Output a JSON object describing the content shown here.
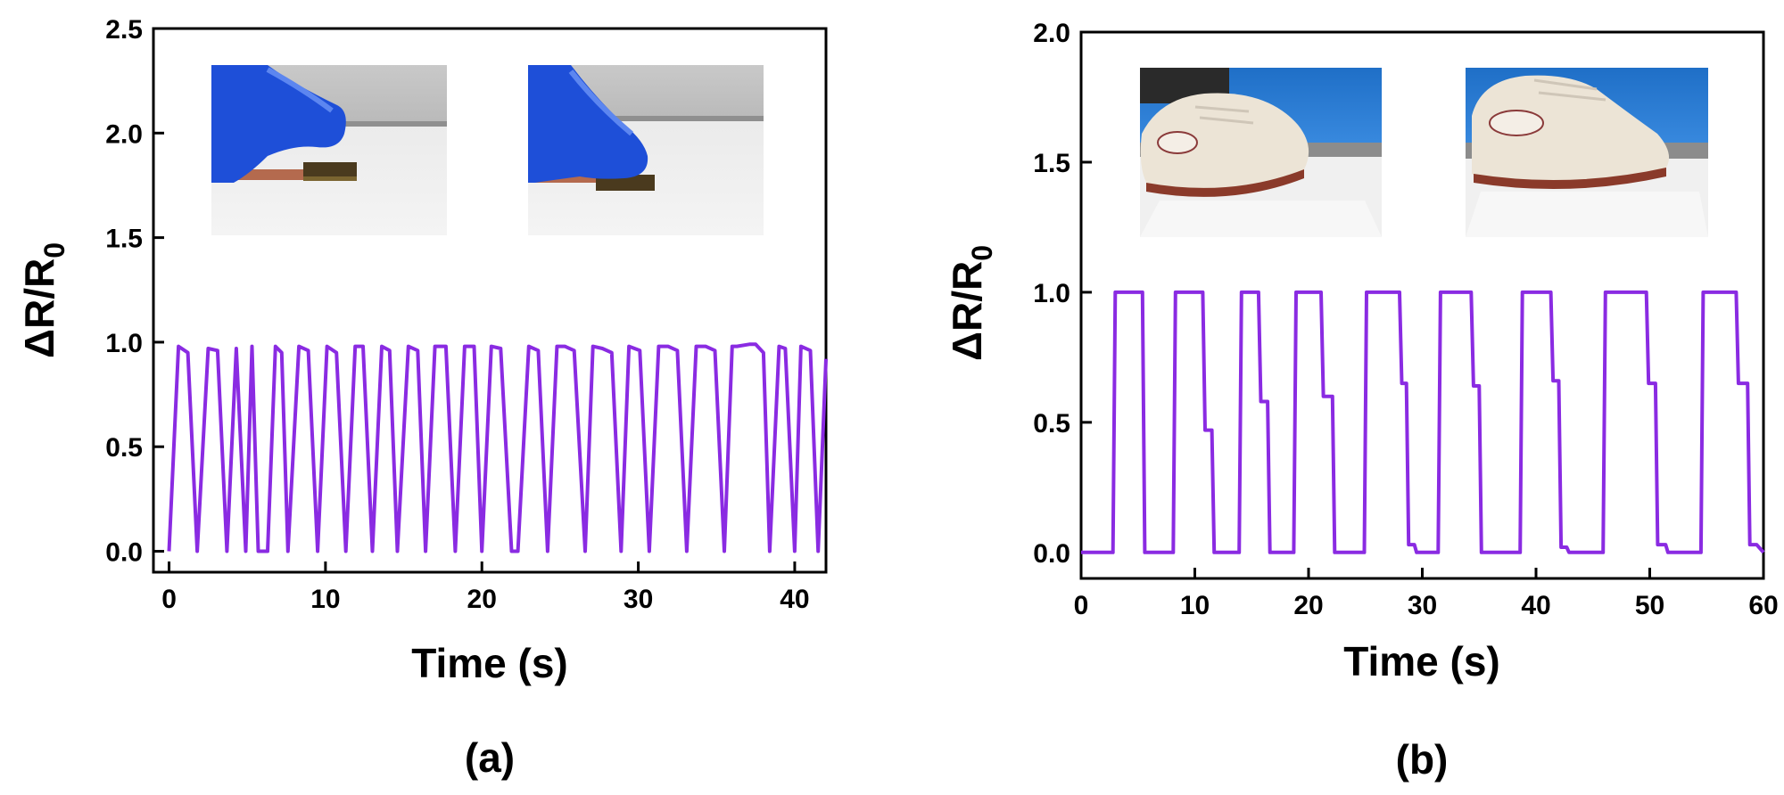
{
  "chart_data": [
    {
      "type": "line",
      "panel_label": "(a)",
      "xlabel": "Time (s)",
      "ylabel": "ΔR/R0",
      "xlim": [
        -1,
        42
      ],
      "ylim": [
        -0.1,
        2.5
      ],
      "x_ticks": [
        0,
        10,
        20,
        30,
        40
      ],
      "y_ticks": [
        0.0,
        0.5,
        1.0,
        1.5,
        2.0,
        2.5
      ],
      "x_tick_labels": [
        "0",
        "10",
        "20",
        "30",
        "40"
      ],
      "y_tick_labels": [
        "0.0",
        "0.5",
        "1.0",
        "1.5",
        "2.0",
        "2.5"
      ],
      "line_color": "#8a2be2",
      "inset_photos": [
        "finger-press-before",
        "finger-press-after"
      ],
      "series": [
        {
          "x": [
            0,
            0.6,
            1.2,
            1.8,
            2.5,
            3.1,
            3.7,
            4.3,
            4.9,
            5.3,
            5.7,
            6.3,
            6.8,
            7.2,
            7.6,
            8.3,
            8.9,
            9.5,
            10.1,
            10.7,
            11.3,
            11.9,
            12.4,
            13.0,
            13.6,
            14.1,
            14.6,
            15.3,
            15.9,
            16.4,
            17.0,
            17.7,
            18.3,
            18.9,
            19.5,
            20.0,
            20.6,
            21.2,
            21.9,
            22.3,
            23.0,
            23.6,
            24.2,
            24.8,
            25.3,
            25.9,
            26.6,
            27.1,
            27.7,
            28.3,
            28.9,
            29.4,
            30.1,
            30.7,
            31.3,
            31.9,
            32.5,
            33.1,
            33.7,
            34.3,
            34.9,
            35.5,
            36.0,
            36.3,
            37.1,
            37.5,
            38.0,
            38.4,
            39.0,
            39.4,
            40.0,
            40.4,
            41.0,
            41.5,
            42.0
          ],
          "y": [
            0,
            0.98,
            0.95,
            0,
            0.97,
            0.96,
            0,
            0.97,
            0,
            0.98,
            0,
            0,
            0.98,
            0.95,
            0,
            0.98,
            0.96,
            0,
            0.98,
            0.95,
            0,
            0.98,
            0.98,
            0,
            0.98,
            0.96,
            0,
            0.98,
            0.96,
            0,
            0.98,
            0.98,
            0,
            0.98,
            0.98,
            0,
            0.98,
            0.97,
            0,
            0,
            0.98,
            0.96,
            0,
            0.98,
            0.98,
            0.96,
            0,
            0.98,
            0.97,
            0.95,
            0,
            0.98,
            0.96,
            0,
            0.98,
            0.98,
            0.96,
            0,
            0.98,
            0.98,
            0.96,
            0,
            0.98,
            0.98,
            0.99,
            0.99,
            0.95,
            0,
            0.98,
            0.97,
            0,
            0.98,
            0.96,
            0,
            0.92
          ]
        }
      ]
    },
    {
      "type": "line",
      "panel_label": "(b)",
      "xlabel": "Time (s)",
      "ylabel": "ΔR/R0",
      "xlim": [
        0,
        60
      ],
      "ylim": [
        -0.1,
        2.0
      ],
      "x_ticks": [
        0,
        10,
        20,
        30,
        40,
        50,
        60
      ],
      "y_ticks": [
        0.0,
        0.5,
        1.0,
        1.5,
        2.0
      ],
      "x_tick_labels": [
        "0",
        "10",
        "20",
        "30",
        "40",
        "50",
        "60"
      ],
      "y_tick_labels": [
        "0.0",
        "0.5",
        "1.0",
        "1.5",
        "2.0"
      ],
      "line_color": "#8a2be2",
      "inset_photos": [
        "shoe-step-before",
        "shoe-step-after"
      ],
      "series": [
        {
          "x": [
            0,
            2.8,
            3.0,
            5.4,
            5.6,
            8.1,
            8.3,
            10.7,
            10.9,
            11.5,
            11.7,
            13.9,
            14.1,
            15.6,
            15.8,
            16.4,
            16.6,
            18.7,
            18.9,
            21.1,
            21.3,
            22.1,
            22.3,
            24.9,
            25.1,
            28.0,
            28.2,
            28.6,
            28.8,
            29.3,
            29.5,
            31.4,
            31.6,
            34.3,
            34.5,
            35.0,
            35.2,
            38.6,
            38.8,
            41.3,
            41.5,
            42.0,
            42.2,
            42.7,
            42.9,
            45.9,
            46.1,
            49.7,
            49.9,
            50.5,
            50.7,
            51.4,
            51.6,
            54.5,
            54.7,
            57.6,
            57.8,
            58.6,
            58.8,
            59.4,
            59.6,
            60.0
          ],
          "y": [
            0,
            0,
            1.0,
            1.0,
            0,
            0,
            1.0,
            1.0,
            0.47,
            0.47,
            0,
            0,
            1.0,
            1.0,
            0.58,
            0.58,
            0,
            0,
            1.0,
            1.0,
            0.6,
            0.6,
            0,
            0,
            1.0,
            1.0,
            0.65,
            0.65,
            0.03,
            0.03,
            0,
            0,
            1.0,
            1.0,
            0.64,
            0.64,
            0,
            0,
            1.0,
            1.0,
            0.66,
            0.66,
            0.02,
            0.02,
            0,
            0,
            1.0,
            1.0,
            0.65,
            0.65,
            0.03,
            0.03,
            0,
            0,
            1.0,
            1.0,
            0.65,
            0.65,
            0.03,
            0.03,
            0.02,
            0
          ]
        }
      ]
    }
  ]
}
